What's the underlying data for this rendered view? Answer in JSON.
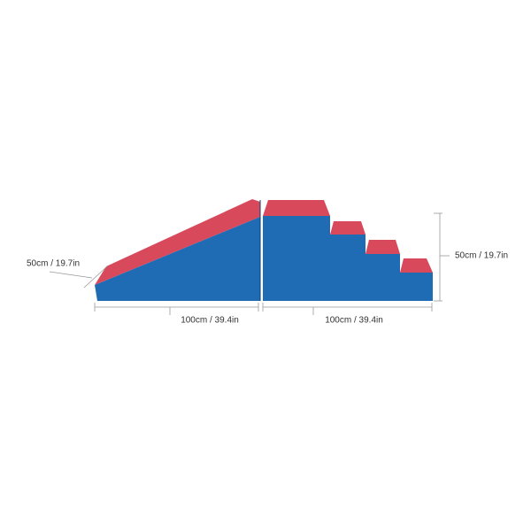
{
  "dimensions": {
    "ramp_depth": "50cm / 19.7in",
    "ramp_length": "100cm / 39.4in",
    "stairs_length": "100cm / 39.4in",
    "stairs_height": "50cm / 19.7in"
  }
}
